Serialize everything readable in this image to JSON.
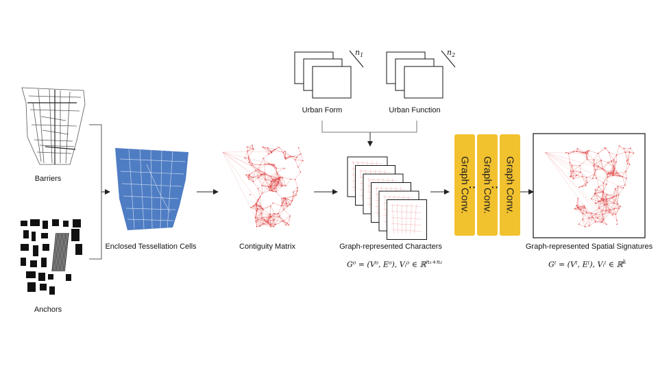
{
  "inputs": {
    "barriers_label": "Barriers",
    "anchors_label": "Anchors"
  },
  "tessellation": {
    "label": "Enclosed Tessellation Cells",
    "color": "#4F7DC4"
  },
  "contiguity": {
    "label": "Contiguity Matrix",
    "color": "#E04848"
  },
  "features": {
    "form": {
      "label": "Urban Form",
      "dim": "n",
      "sub": "1"
    },
    "function": {
      "label": "Urban Function",
      "dim": "n",
      "sub": "2"
    }
  },
  "characters": {
    "label": "Graph-represented Characters",
    "eq_main": "G⁰ = (V⁰, E⁰), Vᵢ⁰ ∈ ℝ",
    "eq_exp": "n₁+n₂"
  },
  "graph_conv": {
    "label": "Graph Conv.",
    "color": "#F2C12E",
    "dots": "···"
  },
  "signatures": {
    "label": "Graph-represented Spatial Signatures",
    "eq_main": "Gˡ = (Vˡ, Eˡ), Vᵢˡ ∈ ℝ",
    "eq_exp": "k"
  }
}
